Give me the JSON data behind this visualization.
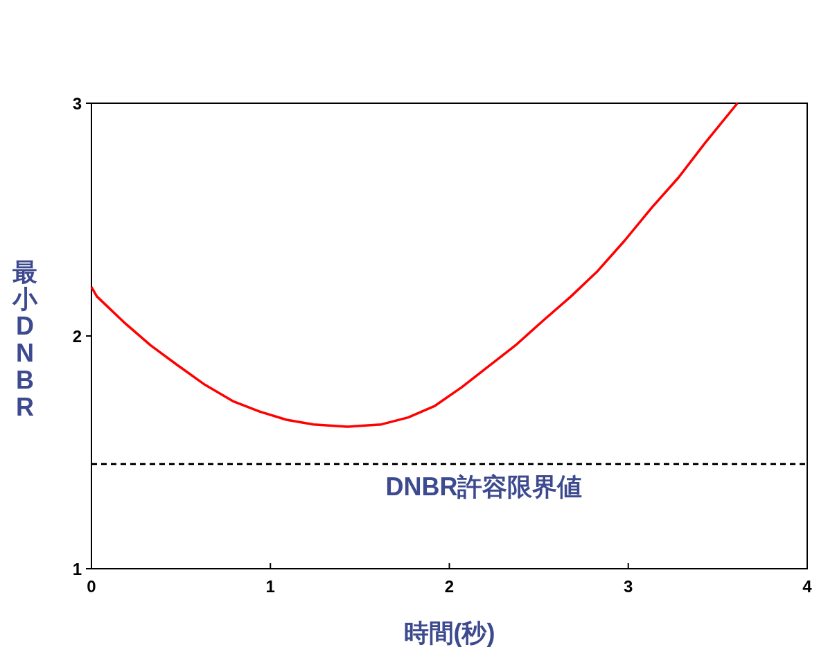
{
  "chart_data": {
    "type": "line",
    "xlabel": "時間(秒)",
    "ylabel": "最小DNBR",
    "x": [
      0,
      0.03,
      0.18,
      0.33,
      0.48,
      0.635,
      0.79,
      0.94,
      1.09,
      1.24,
      1.43,
      1.62,
      1.77,
      1.92,
      2.07,
      2.22,
      2.37,
      2.53,
      2.68,
      2.83,
      2.98,
      3.13,
      3.28,
      3.43,
      3.61
    ],
    "series": [
      {
        "color": "#ff0000",
        "values": [
          2.21,
          2.17,
          2.06,
          1.96,
          1.875,
          1.79,
          1.72,
          1.675,
          1.64,
          1.62,
          1.61,
          1.62,
          1.65,
          1.7,
          1.78,
          1.87,
          1.96,
          2.07,
          2.17,
          2.28,
          2.41,
          2.55,
          2.68,
          2.83,
          3.0
        ]
      }
    ],
    "xlim": [
      0,
      4
    ],
    "ylim": [
      1,
      3
    ],
    "xticks": [
      0,
      1,
      2,
      3,
      4
    ],
    "yticks": [
      1,
      2,
      3
    ],
    "ref_lines": [
      {
        "axis": "y",
        "value": 1.45,
        "label": "DNBR許容限界値",
        "color": "#000000",
        "line_style": "dashed"
      }
    ],
    "line_style": "solid"
  }
}
